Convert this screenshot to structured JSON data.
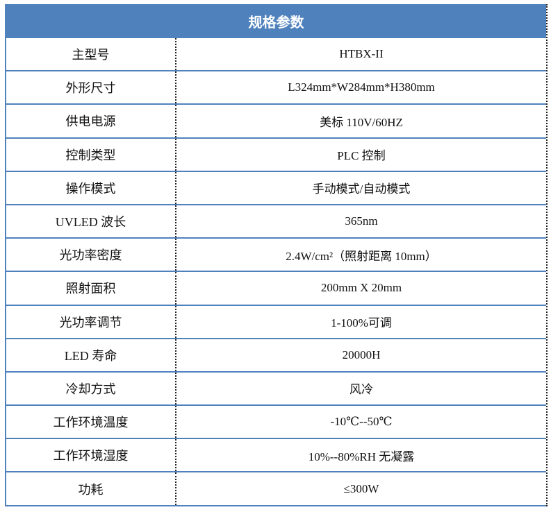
{
  "title": "规格参数",
  "rows": [
    {
      "label": "主型号",
      "value": "HTBX-II"
    },
    {
      "label": "外形尺寸",
      "value": "L324mm*W284mm*H380mm"
    },
    {
      "label": "供电电源",
      "value": "美标 110V/60HZ"
    },
    {
      "label": "控制类型",
      "value": "PLC 控制"
    },
    {
      "label": "操作模式",
      "value": "手动模式/自动模式"
    },
    {
      "label": "UVLED 波长",
      "value": "365nm"
    },
    {
      "label": "光功率密度",
      "value": "2.4W/cm²（照射距离 10mm）"
    },
    {
      "label": "照射面积",
      "value": "200mm X 20mm"
    },
    {
      "label": "光功率调节",
      "value": "1-100%可调"
    },
    {
      "label": "LED 寿命",
      "value": "20000H"
    },
    {
      "label": "冷却方式",
      "value": "风冷"
    },
    {
      "label": "工作环境温度",
      "value": "-10℃--50℃"
    },
    {
      "label": "工作环境湿度",
      "value": "10%--80%RH 无凝露"
    },
    {
      "label": "功耗",
      "value": "≤300W"
    }
  ]
}
